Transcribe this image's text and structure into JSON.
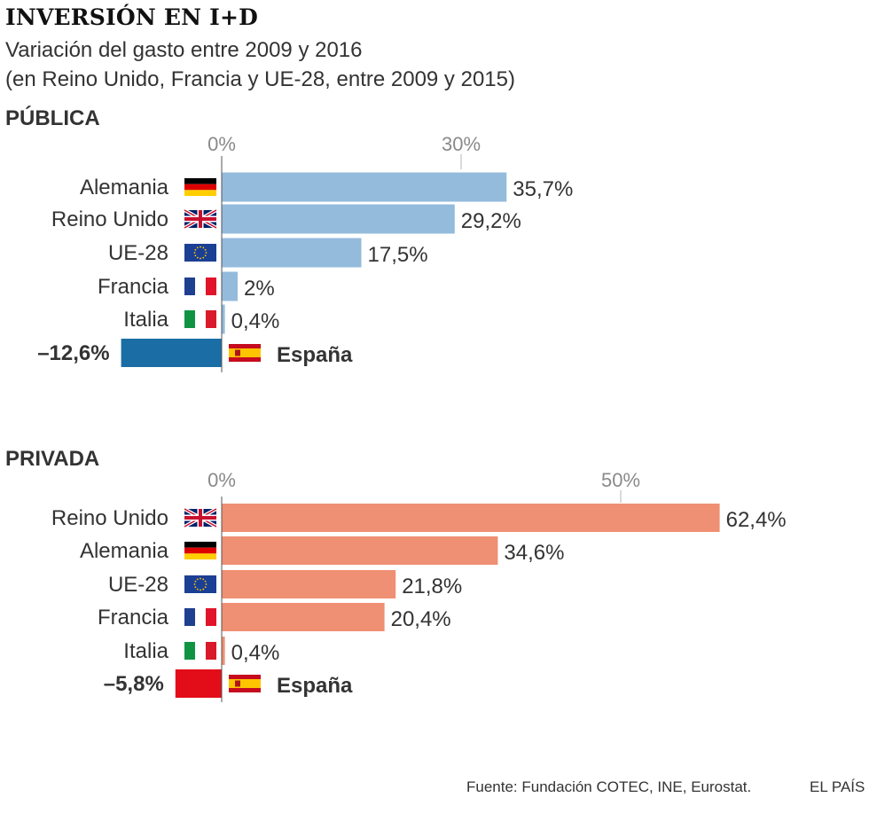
{
  "header": {
    "title": "INVERSIÓN EN I+D",
    "subtitle_line1": "Variación del gasto entre 2009 y 2016",
    "subtitle_line2": "(en Reino Unido, Francia y UE-28, entre 2009 y 2015)"
  },
  "footer": {
    "source": "Fuente: Fundación COTEC, INE, Eurostat.",
    "brand": "EL PAÍS"
  },
  "colors": {
    "public_bar": "#94bbdc",
    "public_highlight": "#1a6ea5",
    "private_bar": "#ef8f73",
    "private_highlight": "#e30d1a"
  },
  "chart_data": [
    {
      "type": "bar",
      "orientation": "horizontal",
      "section_label": "PÚBLICA",
      "unit": "%",
      "tick_values": [
        0,
        30
      ],
      "tick_labels": [
        "0%",
        "30%"
      ],
      "categories": [
        "Alemania",
        "Reino Unido",
        "UE-28",
        "Francia",
        "Italia",
        "España"
      ],
      "flags": [
        "germany-flag-icon",
        "uk-flag-icon",
        "eu-flag-icon",
        "france-flag-icon",
        "italy-flag-icon",
        "spain-flag-icon"
      ],
      "values": [
        35.7,
        29.2,
        17.5,
        2.0,
        0.4,
        -12.6
      ],
      "value_labels": [
        "35,7%",
        "29,2%",
        "17,5%",
        "2%",
        "0,4%",
        "–12,6%"
      ],
      "highlight": "España"
    },
    {
      "type": "bar",
      "orientation": "horizontal",
      "section_label": "PRIVADA",
      "unit": "%",
      "tick_values": [
        0,
        50
      ],
      "tick_labels": [
        "0%",
        "50%"
      ],
      "categories": [
        "Reino Unido",
        "Alemania",
        "UE-28",
        "Francia",
        "Italia",
        "España"
      ],
      "flags": [
        "uk-flag-icon",
        "germany-flag-icon",
        "eu-flag-icon",
        "france-flag-icon",
        "italy-flag-icon",
        "spain-flag-icon"
      ],
      "values": [
        62.4,
        34.6,
        21.8,
        20.4,
        0.4,
        -5.8
      ],
      "value_labels": [
        "62,4%",
        "34,6%",
        "21,8%",
        "20,4%",
        "0,4%",
        "–5,8%"
      ],
      "highlight": "España"
    }
  ]
}
